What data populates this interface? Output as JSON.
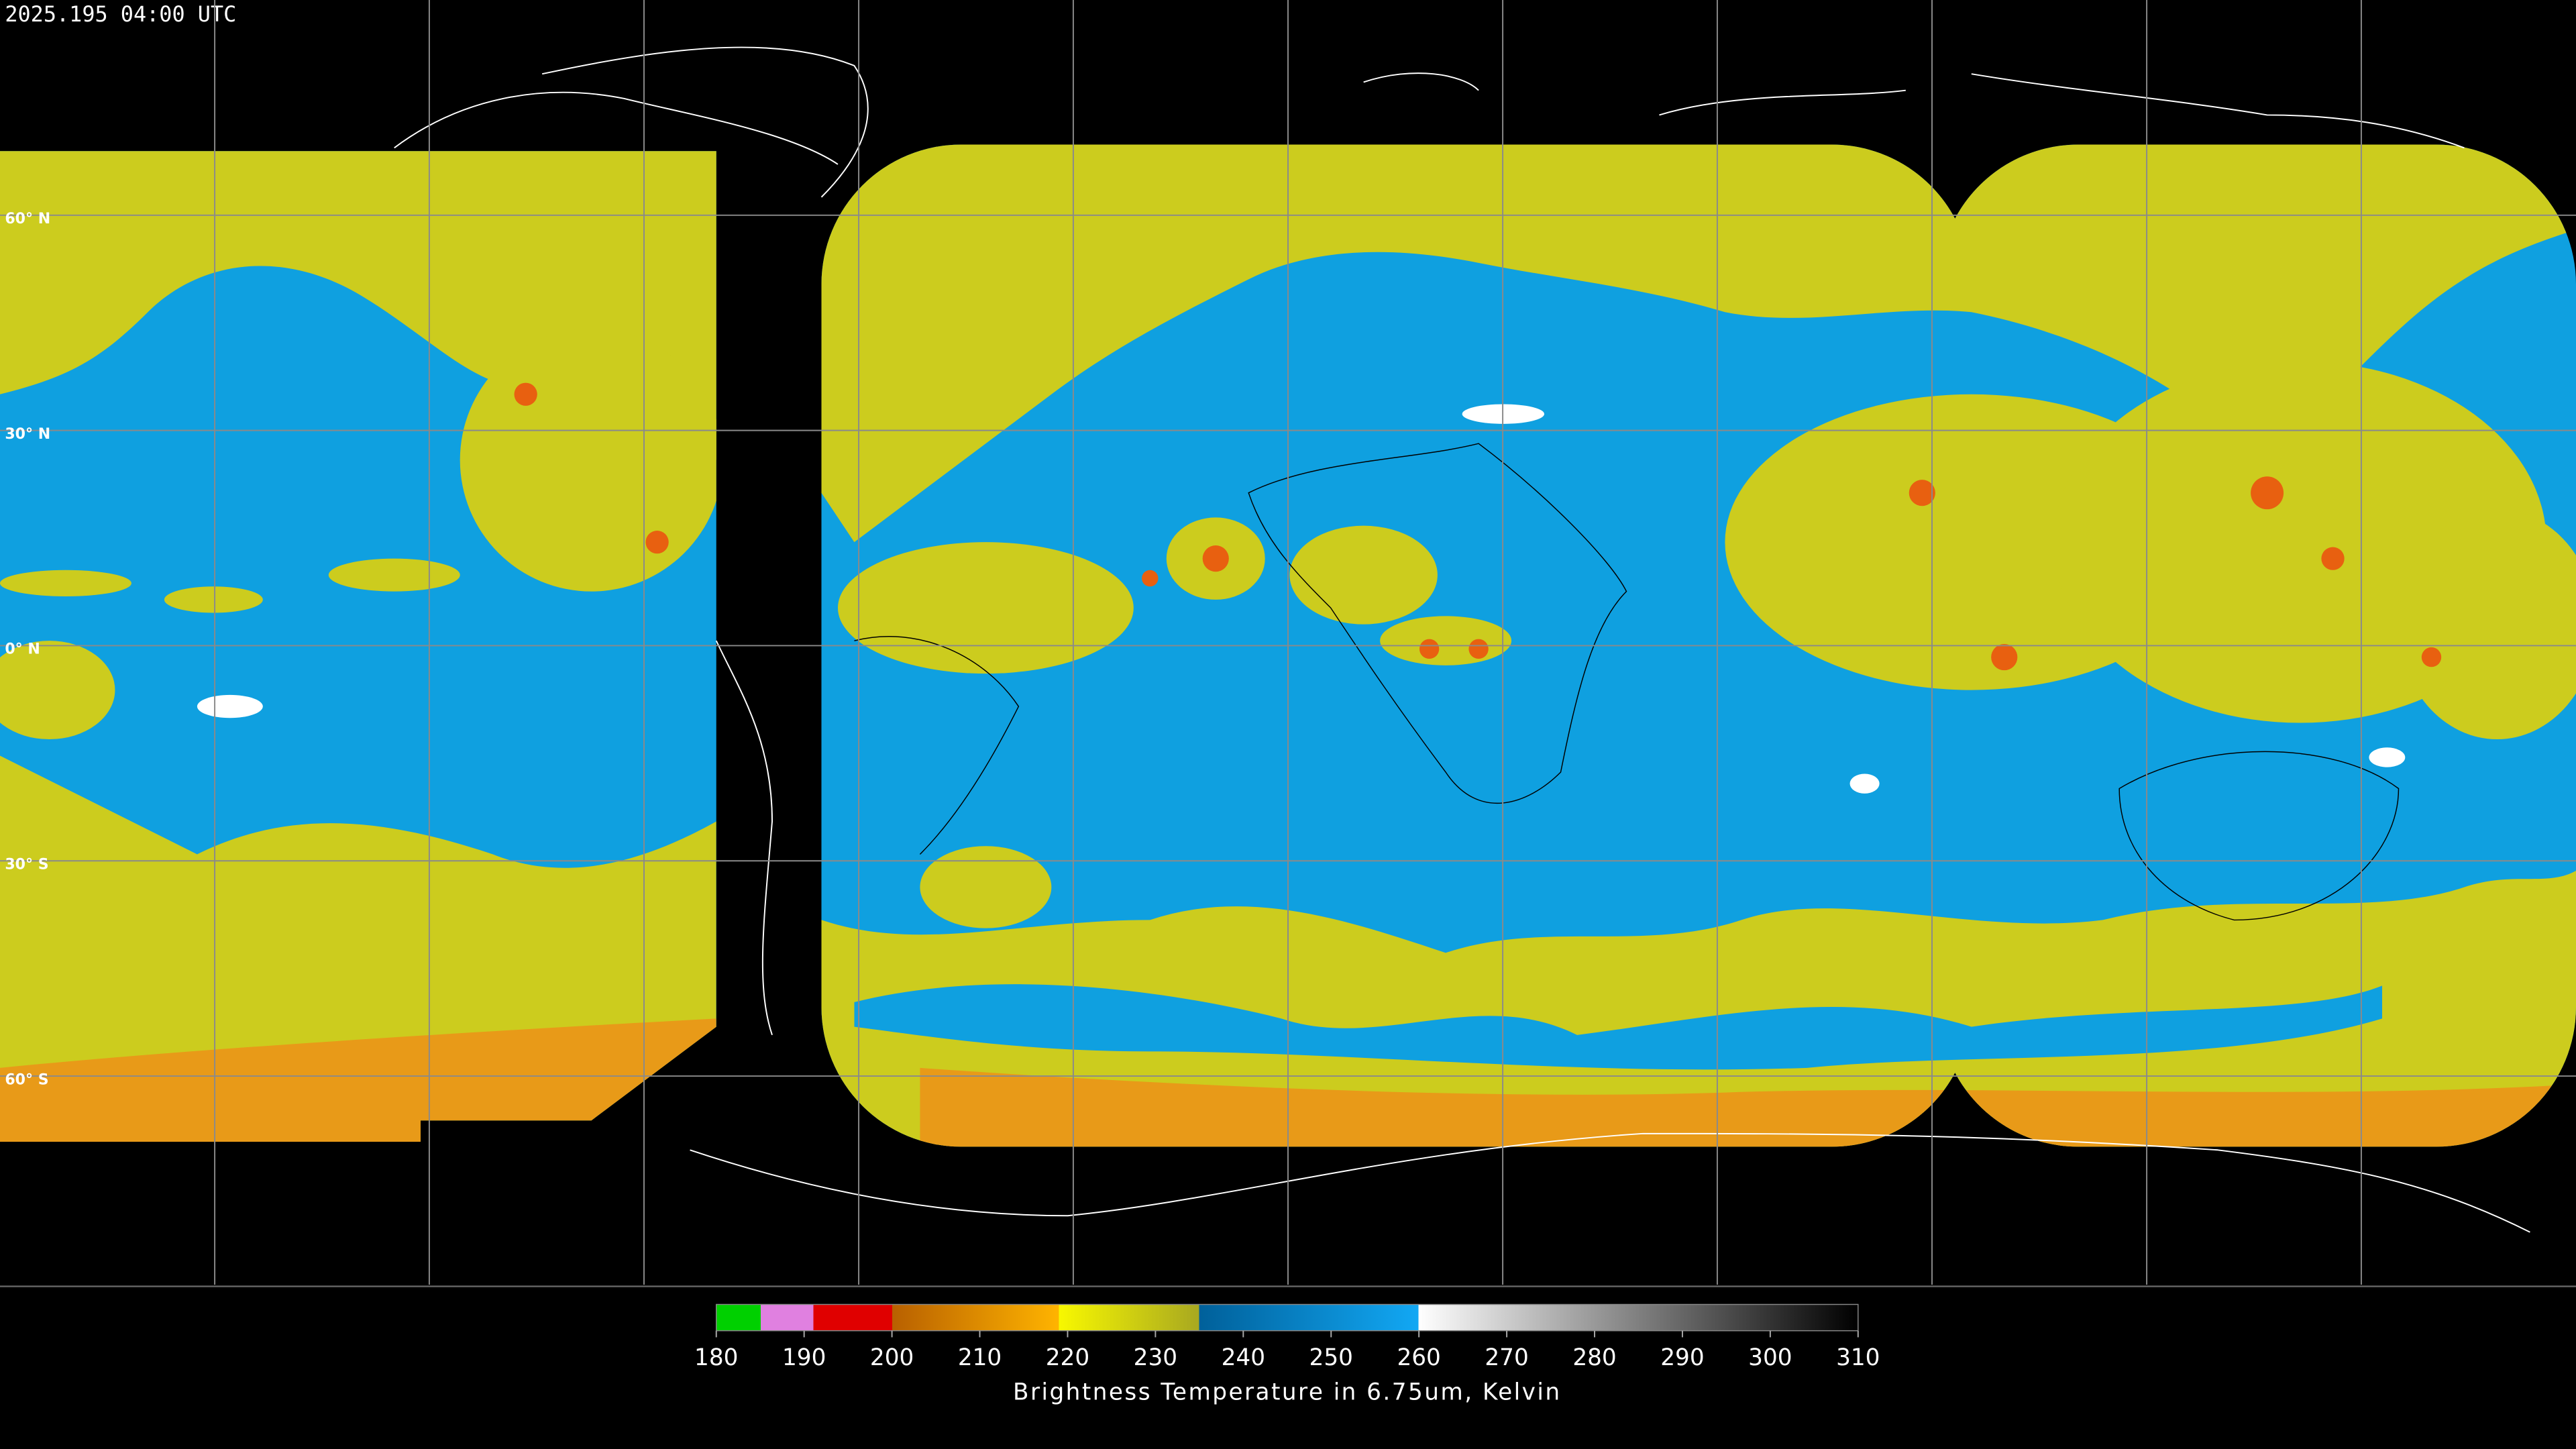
{
  "header": {
    "timestamp": "2025.195 04:00 UTC"
  },
  "map": {
    "latitude_gridlines": [
      {
        "value": 60,
        "label": "60° N"
      },
      {
        "value": 30,
        "label": "30° N"
      },
      {
        "value": 0,
        "label": "0° N"
      },
      {
        "value": -30,
        "label": "30° S"
      },
      {
        "value": -60,
        "label": "60° S"
      }
    ]
  },
  "colorbar": {
    "range": [
      180,
      310
    ],
    "ticks": [
      180,
      190,
      200,
      210,
      220,
      230,
      240,
      250,
      260,
      270,
      280,
      290,
      300,
      310
    ],
    "label": "Brightness Temperature in 6.75um, Kelvin"
  }
}
